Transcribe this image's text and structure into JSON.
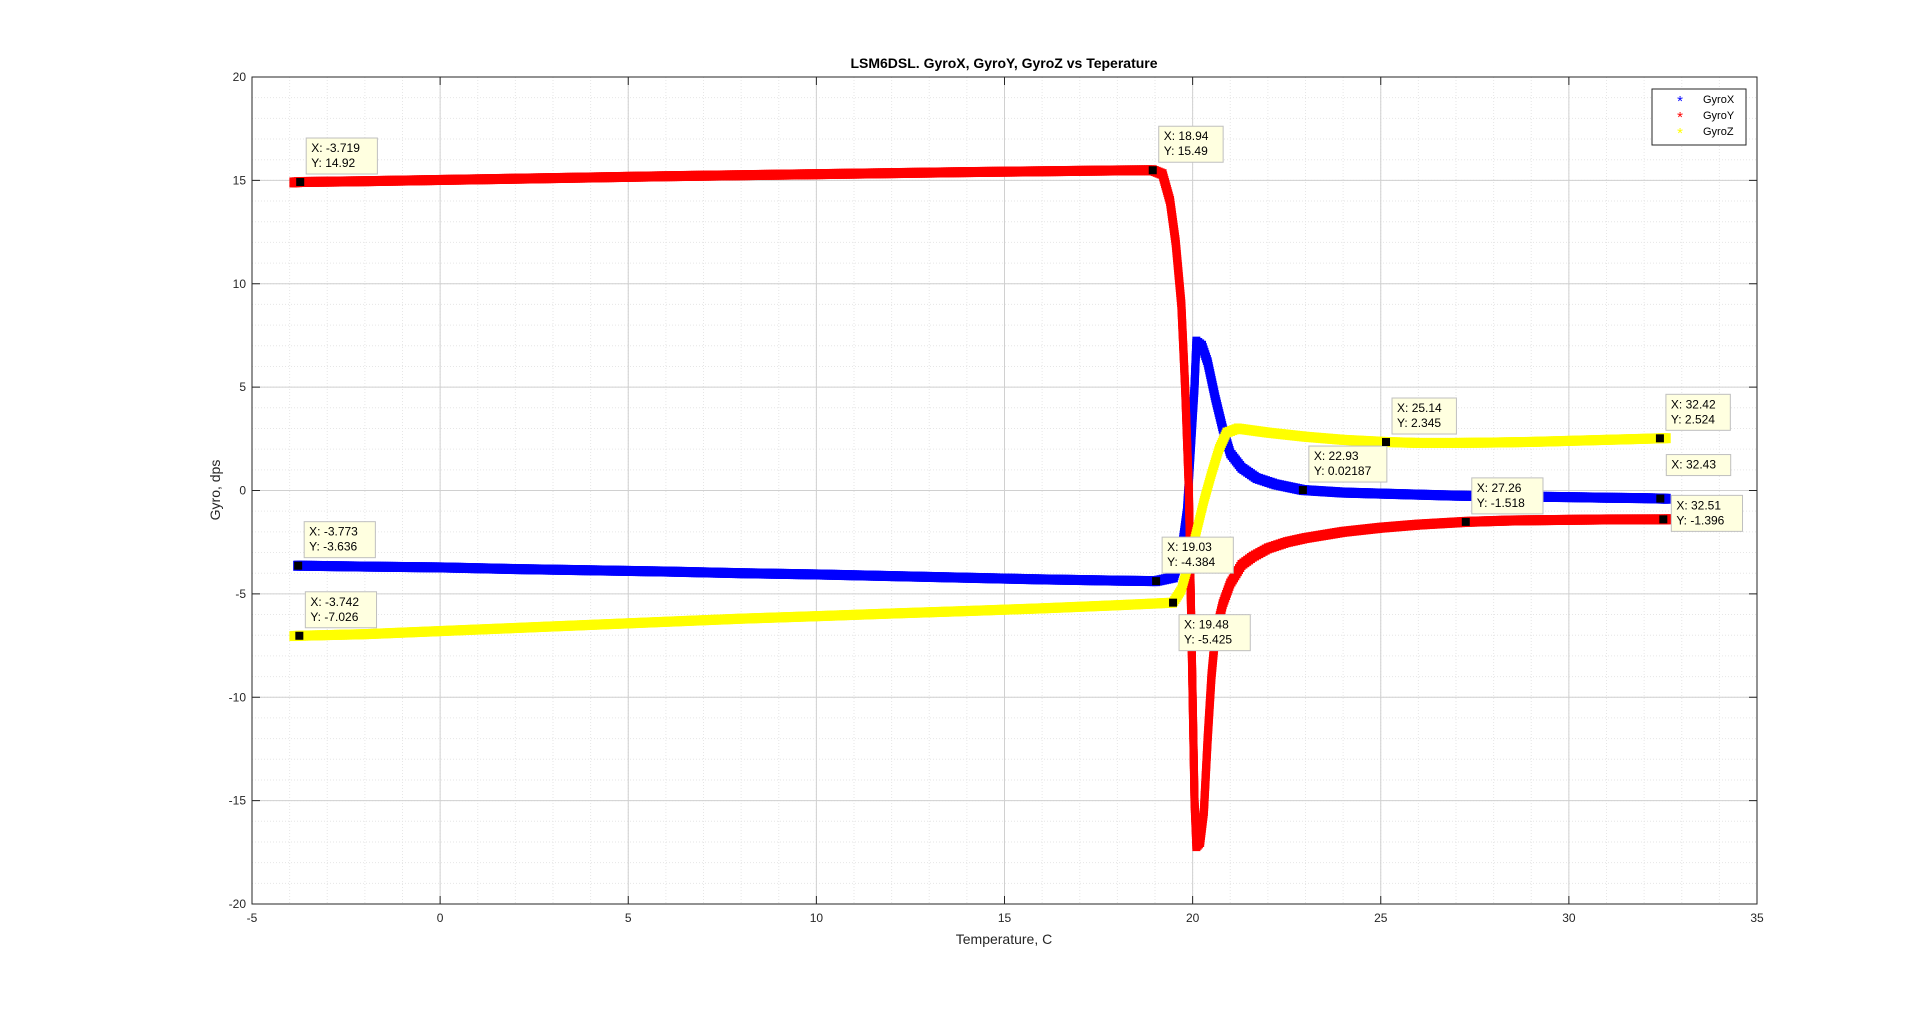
{
  "chart_data": {
    "type": "scatter",
    "title": "LSM6DSL. GyroX, GyroY, GyroZ vs Teperature",
    "xlabel": "Temperature, C",
    "ylabel": "Gyro, dps",
    "xlim": [
      -5,
      35
    ],
    "ylim": [
      -20,
      20
    ],
    "xticks": [
      -5,
      0,
      5,
      10,
      15,
      20,
      25,
      30,
      35
    ],
    "yticks": [
      -20,
      -15,
      -10,
      -5,
      0,
      5,
      10,
      15,
      20
    ],
    "xtick_labels": [
      "-5",
      "0",
      "5",
      "10",
      "15",
      "20",
      "25",
      "30",
      "35"
    ],
    "ytick_labels": [
      "-20",
      "-15",
      "-10",
      "-5",
      "0",
      "5",
      "10",
      "15",
      "20"
    ],
    "grid": true,
    "minor_grid": true,
    "marker": "*",
    "legend_position": "top-right",
    "series": [
      {
        "name": "GyroX",
        "color": "#0000ff",
        "points": [
          [
            -3.8,
            -3.64
          ],
          [
            -3.773,
            -3.636
          ],
          [
            -2,
            -3.68
          ],
          [
            0,
            -3.72
          ],
          [
            2,
            -3.8
          ],
          [
            4,
            -3.86
          ],
          [
            6,
            -3.92
          ],
          [
            8,
            -4.0
          ],
          [
            10,
            -4.06
          ],
          [
            12,
            -4.14
          ],
          [
            14,
            -4.22
          ],
          [
            16,
            -4.3
          ],
          [
            18,
            -4.36
          ],
          [
            19.03,
            -4.384
          ],
          [
            19.5,
            -4.2
          ],
          [
            19.7,
            -3.0
          ],
          [
            19.85,
            -1.0
          ],
          [
            19.95,
            2.0
          ],
          [
            20.05,
            5.0
          ],
          [
            20.1,
            7.2
          ],
          [
            20.25,
            7.0
          ],
          [
            20.4,
            6.2
          ],
          [
            20.6,
            4.5
          ],
          [
            20.8,
            3.0
          ],
          [
            21.0,
            1.8
          ],
          [
            21.3,
            1.1
          ],
          [
            21.7,
            0.6
          ],
          [
            22.2,
            0.3
          ],
          [
            22.93,
            0.02187
          ],
          [
            24,
            -0.1
          ],
          [
            25,
            -0.15
          ],
          [
            26,
            -0.2
          ],
          [
            27,
            -0.25
          ],
          [
            28,
            -0.28
          ],
          [
            29,
            -0.3
          ],
          [
            30,
            -0.32
          ],
          [
            31,
            -0.35
          ],
          [
            32,
            -0.37
          ],
          [
            32.43,
            -0.39
          ],
          [
            32.6,
            -0.4
          ]
        ]
      },
      {
        "name": "GyroY",
        "color": "#ff0000",
        "points": [
          [
            -3.9,
            14.9
          ],
          [
            -3.719,
            14.92
          ],
          [
            -2,
            14.96
          ],
          [
            0,
            15.02
          ],
          [
            2,
            15.08
          ],
          [
            4,
            15.14
          ],
          [
            6,
            15.2
          ],
          [
            8,
            15.25
          ],
          [
            10,
            15.3
          ],
          [
            12,
            15.35
          ],
          [
            14,
            15.4
          ],
          [
            16,
            15.44
          ],
          [
            18,
            15.48
          ],
          [
            18.94,
            15.49
          ],
          [
            19.2,
            15.3
          ],
          [
            19.4,
            14.0
          ],
          [
            19.55,
            12.0
          ],
          [
            19.7,
            9.0
          ],
          [
            19.8,
            5.0
          ],
          [
            19.9,
            0.0
          ],
          [
            19.95,
            -5.0
          ],
          [
            20.0,
            -10.0
          ],
          [
            20.05,
            -15.0
          ],
          [
            20.1,
            -17.2
          ],
          [
            20.2,
            -17.0
          ],
          [
            20.3,
            -15.5
          ],
          [
            20.4,
            -12.0
          ],
          [
            20.5,
            -9.0
          ],
          [
            20.6,
            -7.0
          ],
          [
            20.8,
            -5.5
          ],
          [
            21.0,
            -4.5
          ],
          [
            21.3,
            -3.6
          ],
          [
            21.6,
            -3.2
          ],
          [
            22.0,
            -2.8
          ],
          [
            22.5,
            -2.5
          ],
          [
            23.0,
            -2.3
          ],
          [
            24.0,
            -2.0
          ],
          [
            25.0,
            -1.8
          ],
          [
            26.0,
            -1.65
          ],
          [
            27.26,
            -1.518
          ],
          [
            28.5,
            -1.45
          ],
          [
            30.0,
            -1.42
          ],
          [
            31.0,
            -1.4
          ],
          [
            32.51,
            -1.396
          ],
          [
            32.7,
            -1.39
          ]
        ]
      },
      {
        "name": "GyroZ",
        "color": "#ffff00",
        "points": [
          [
            -3.9,
            -7.04
          ],
          [
            -3.742,
            -7.026
          ],
          [
            -2,
            -6.95
          ],
          [
            0,
            -6.8
          ],
          [
            2,
            -6.65
          ],
          [
            4,
            -6.5
          ],
          [
            6,
            -6.35
          ],
          [
            8,
            -6.2
          ],
          [
            10,
            -6.08
          ],
          [
            12,
            -5.95
          ],
          [
            14,
            -5.83
          ],
          [
            16,
            -5.7
          ],
          [
            18,
            -5.55
          ],
          [
            19.48,
            -5.425
          ],
          [
            19.7,
            -4.8
          ],
          [
            19.9,
            -3.5
          ],
          [
            20.1,
            -2.0
          ],
          [
            20.3,
            -0.5
          ],
          [
            20.5,
            0.8
          ],
          [
            20.7,
            2.0
          ],
          [
            20.9,
            2.8
          ],
          [
            21.2,
            3.0
          ],
          [
            21.6,
            2.9
          ],
          [
            22.0,
            2.8
          ],
          [
            22.5,
            2.7
          ],
          [
            23.0,
            2.6
          ],
          [
            24.0,
            2.45
          ],
          [
            25.14,
            2.345
          ],
          [
            26.0,
            2.3
          ],
          [
            27.0,
            2.3
          ],
          [
            28.0,
            2.32
          ],
          [
            29.0,
            2.35
          ],
          [
            30.0,
            2.4
          ],
          [
            31.0,
            2.45
          ],
          [
            32.0,
            2.5
          ],
          [
            32.42,
            2.524
          ],
          [
            32.6,
            2.53
          ]
        ]
      }
    ],
    "datatips": [
      {
        "x": -3.719,
        "y": 14.92,
        "lines": [
          "X: -3.719",
          "Y: 14.92"
        ]
      },
      {
        "x": 18.94,
        "y": 15.49,
        "lines": [
          "X: 18.94",
          "Y: 15.49"
        ]
      },
      {
        "x": -3.773,
        "y": -3.636,
        "lines": [
          "X: -3.773",
          "Y: -3.636"
        ]
      },
      {
        "x": -3.742,
        "y": -7.026,
        "lines": [
          "X: -3.742",
          "Y: -7.026"
        ]
      },
      {
        "x": 19.03,
        "y": -4.384,
        "lines": [
          "X: 19.03",
          "Y: -4.384"
        ]
      },
      {
        "x": 19.48,
        "y": -5.425,
        "lines": [
          "X: 19.48",
          "Y: -5.425"
        ]
      },
      {
        "x": 22.93,
        "y": 0.02187,
        "lines": [
          "X: 22.93",
          "Y: 0.02187"
        ]
      },
      {
        "x": 25.14,
        "y": 2.345,
        "lines": [
          "X: 25.14",
          "Y: 2.345"
        ]
      },
      {
        "x": 27.26,
        "y": -1.518,
        "lines": [
          "X: 27.26",
          "Y: -1.518"
        ]
      },
      {
        "x": 32.42,
        "y": 2.524,
        "lines": [
          "X: 32.42",
          "Y: 2.524"
        ]
      },
      {
        "x": 32.43,
        "y": -0.39,
        "lines": [
          "X: 32.43"
        ]
      },
      {
        "x": 32.51,
        "y": -1.396,
        "lines": [
          "X: 32.51",
          "Y: -1.396"
        ]
      }
    ]
  }
}
